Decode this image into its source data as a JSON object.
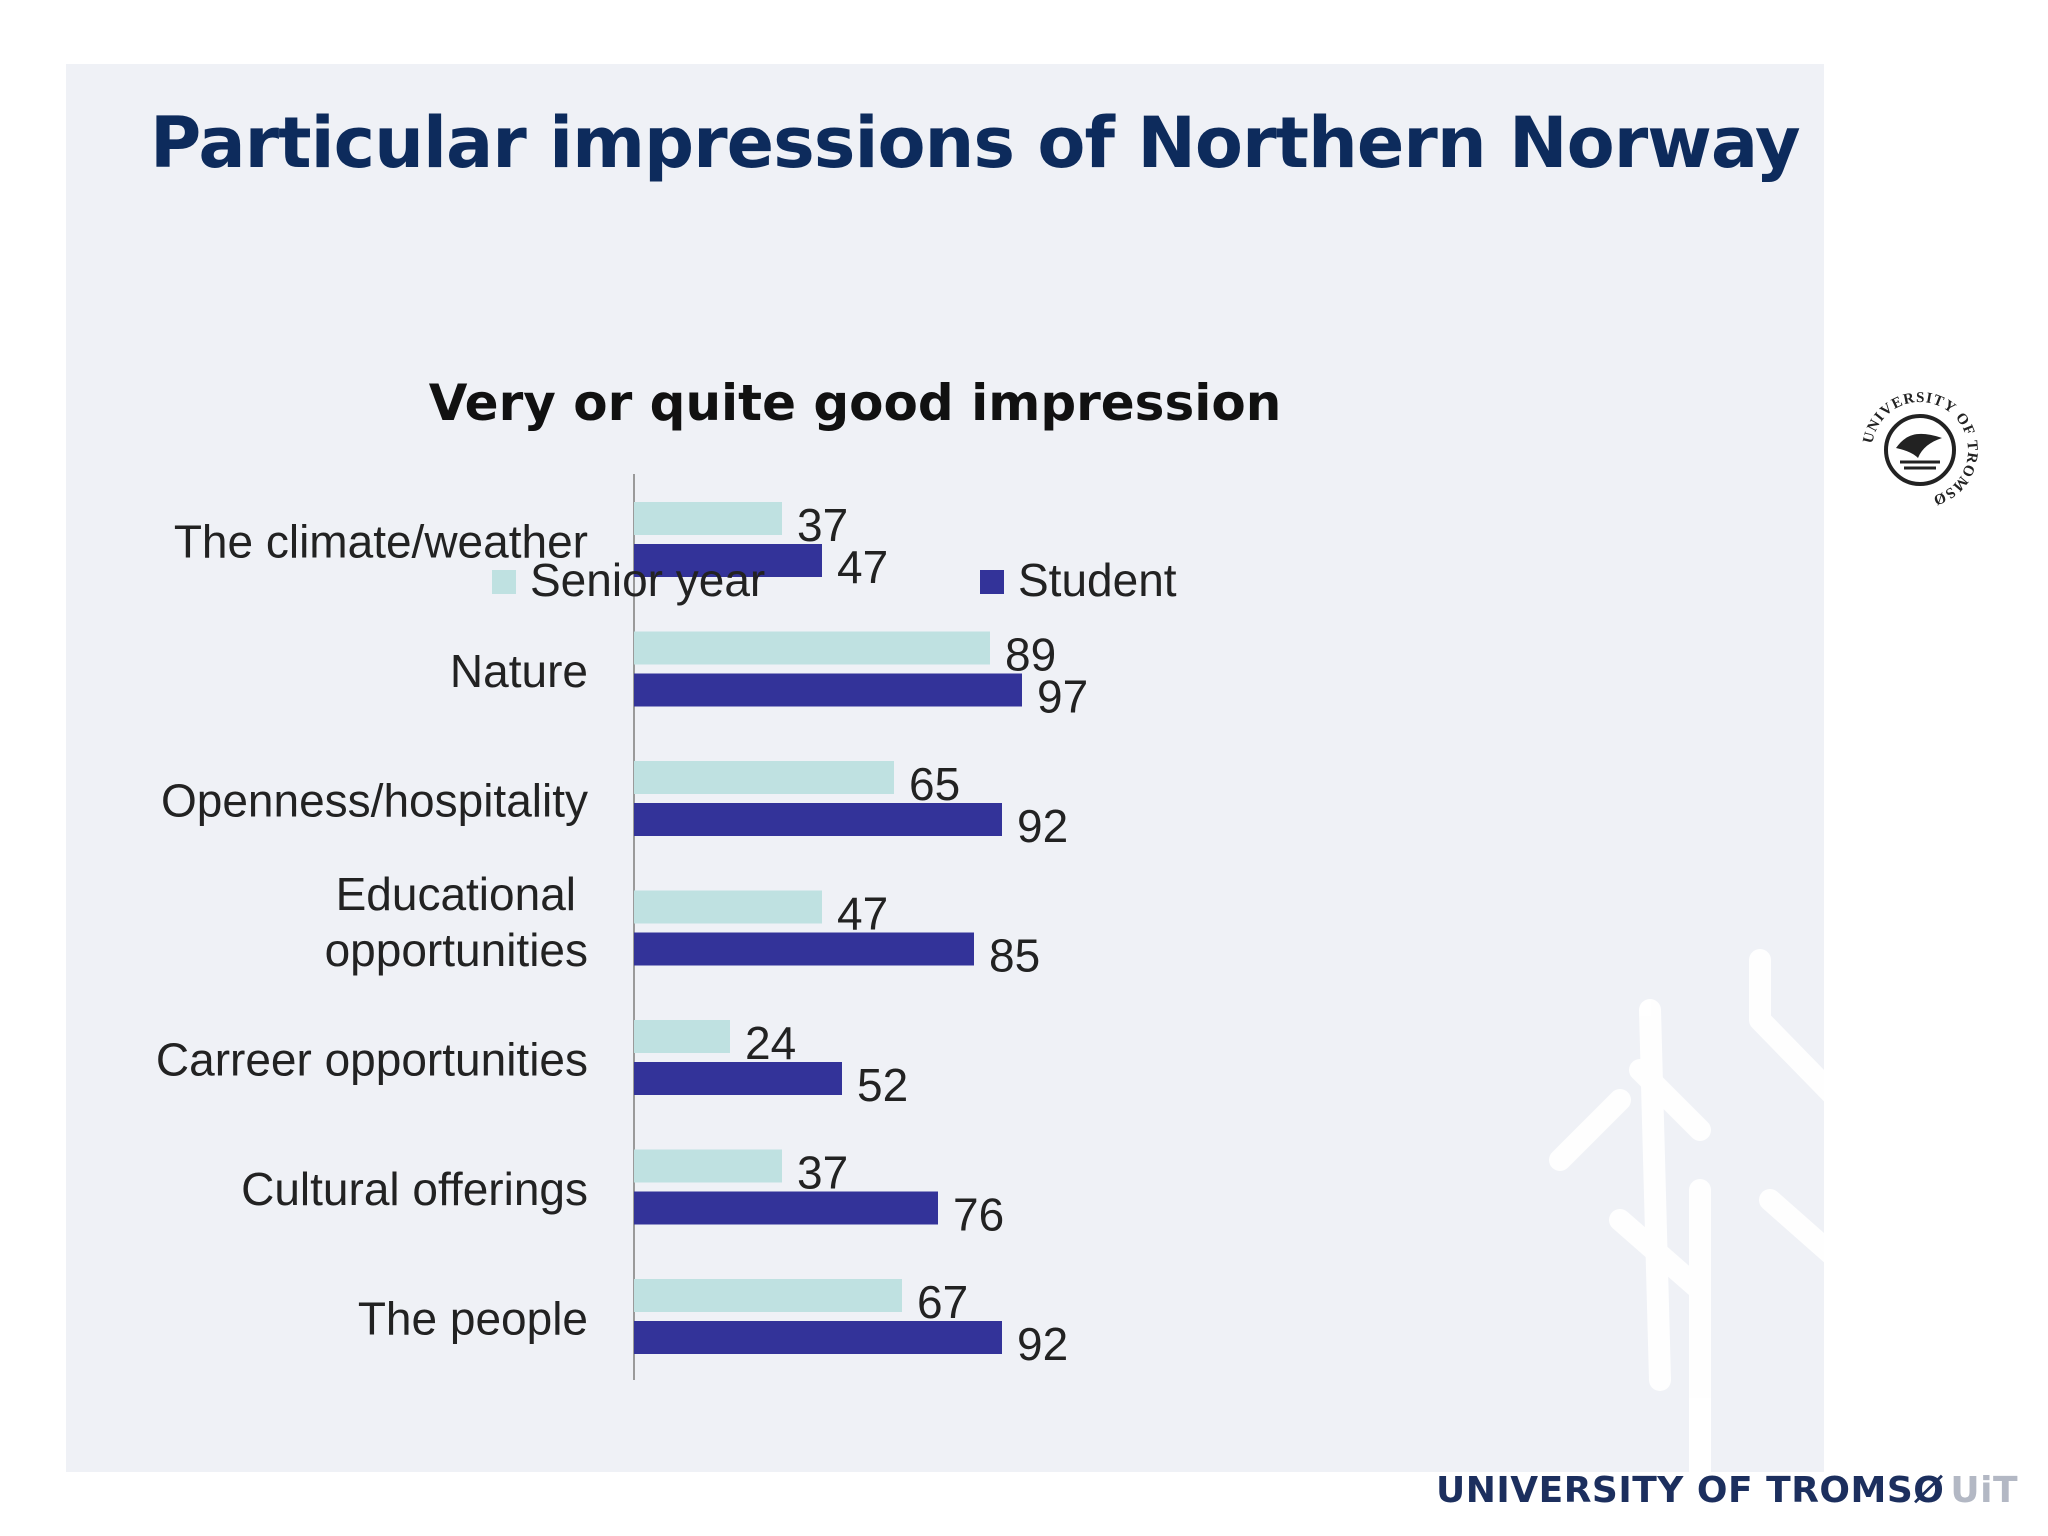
{
  "slide": {
    "title": "Particular impressions of Northern Norway",
    "footer": {
      "name": "UNIVERSITY OF TROMSØ",
      "suffix": "UiT"
    },
    "seal_text": "UNIVERSITY OF TROMSØ",
    "colors": {
      "title": "#0d2b5c",
      "panel": "#eff1f6",
      "footer": "#1c2f5e",
      "footer_suffix": "#b3b8c4"
    }
  },
  "chart_data": {
    "type": "bar",
    "orientation": "horizontal",
    "title": "Very or quite good impression",
    "categories": [
      "The climate/weather",
      "Nature",
      "Openness/hospitality",
      "Educational opportunities",
      "Carreer opportunities",
      "Cultural offerings",
      "The people"
    ],
    "series": [
      {
        "name": "Senior year",
        "color": "#bfe1e1",
        "values": [
          37,
          89,
          65,
          47,
          24,
          37,
          67
        ]
      },
      {
        "name": "Student",
        "color": "#333399",
        "values": [
          47,
          97,
          92,
          85,
          52,
          76,
          92
        ]
      }
    ],
    "xlim": [
      0,
      100
    ],
    "data_labels": true,
    "grid": false,
    "legend": "top"
  }
}
